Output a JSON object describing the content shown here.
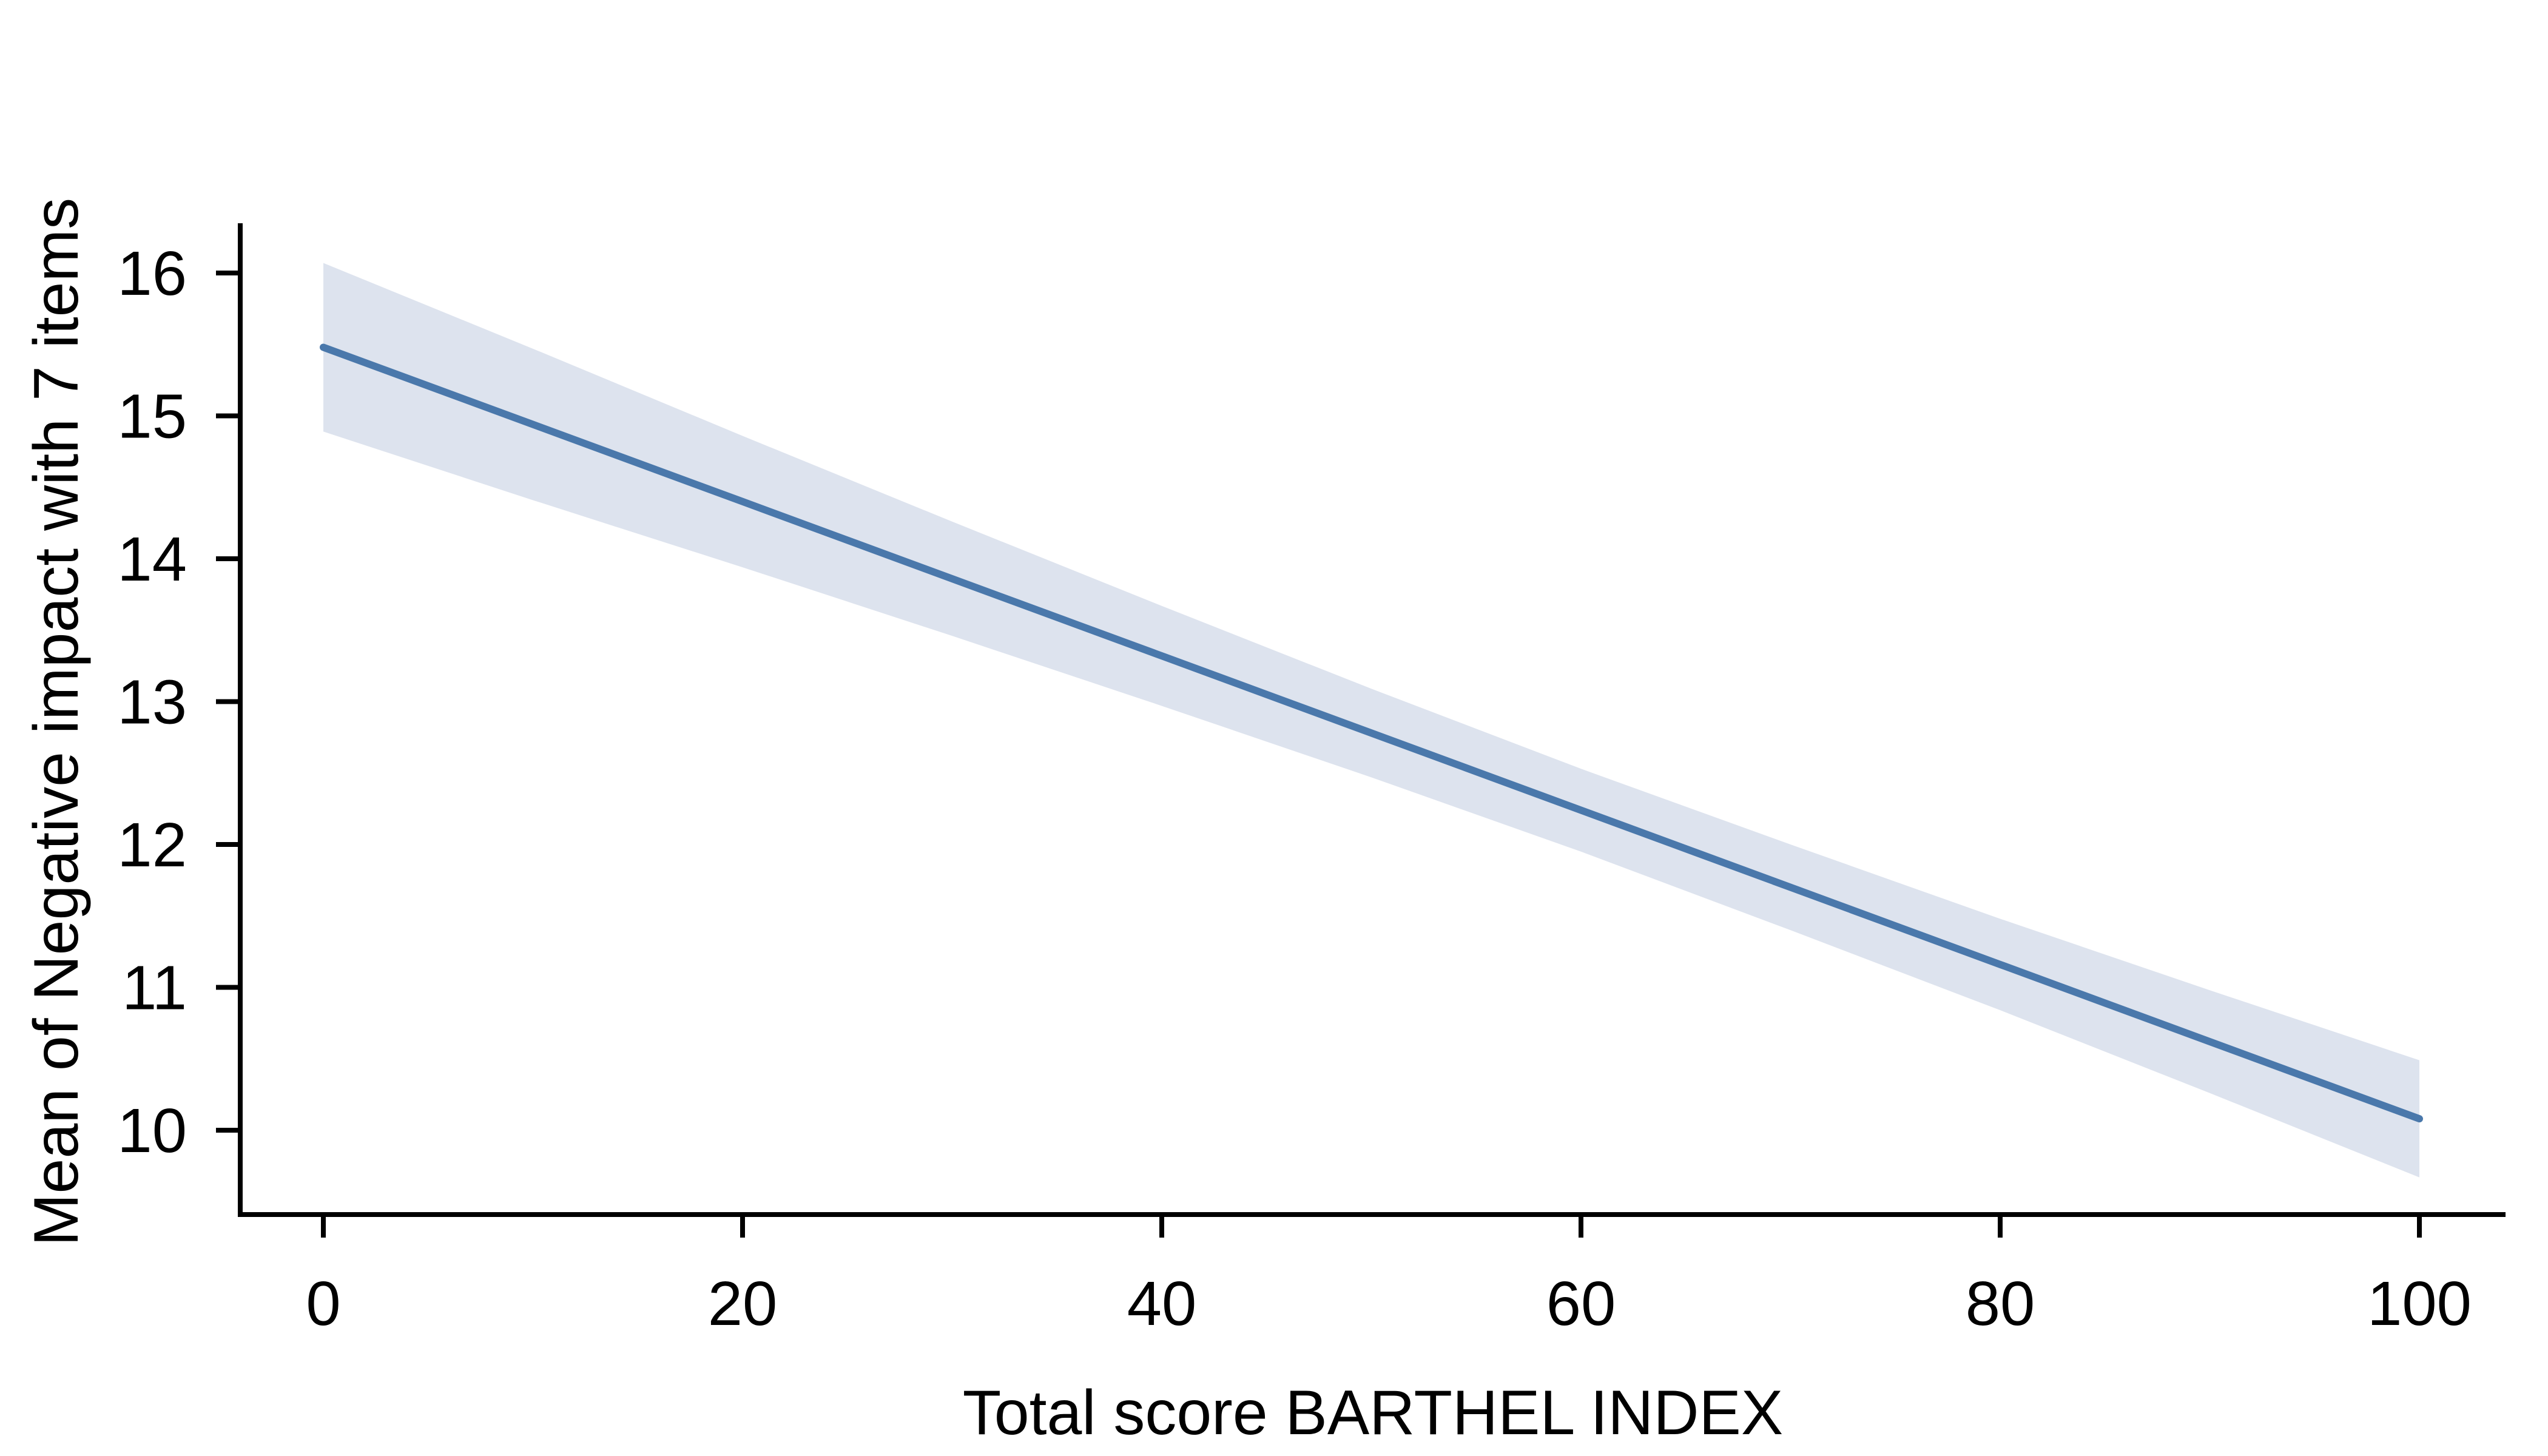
{
  "page": {
    "background_color": "#ffffff"
  },
  "chart_data": {
    "type": "line",
    "subtype": "linear-fit-with-confidence-band",
    "title": "",
    "xlabel": "Total score BARTHEL INDEX",
    "ylabel": "Mean of Negative impact with 7 items",
    "x": [
      0,
      10,
      20,
      30,
      40,
      50,
      60,
      70,
      80,
      90,
      100
    ],
    "series": [
      {
        "name": "fitted-mean",
        "values": [
          15.48,
          14.94,
          14.4,
          13.86,
          13.32,
          12.78,
          12.24,
          11.7,
          11.16,
          10.62,
          10.08
        ]
      }
    ],
    "ci_upper": [
      16.07,
      15.47,
      14.86,
      14.26,
      13.67,
      13.09,
      12.53,
      12.0,
      11.48,
      10.98,
      10.49
    ],
    "ci_lower": [
      14.89,
      14.41,
      13.94,
      13.46,
      12.97,
      12.47,
      11.95,
      11.4,
      10.84,
      10.26,
      9.67
    ],
    "xticks": [
      0,
      20,
      40,
      60,
      80,
      100
    ],
    "yticks": [
      16,
      15,
      14,
      13,
      12,
      11,
      10
    ],
    "xlim": [
      0,
      100
    ],
    "ylim": [
      9.4,
      16.35
    ],
    "grid": false,
    "legend_position": "none",
    "colors": {
      "line": "#4a78ab",
      "band": "#dde3ee",
      "axis": "#000000",
      "text": "#000000",
      "background": "#ffffff"
    }
  }
}
